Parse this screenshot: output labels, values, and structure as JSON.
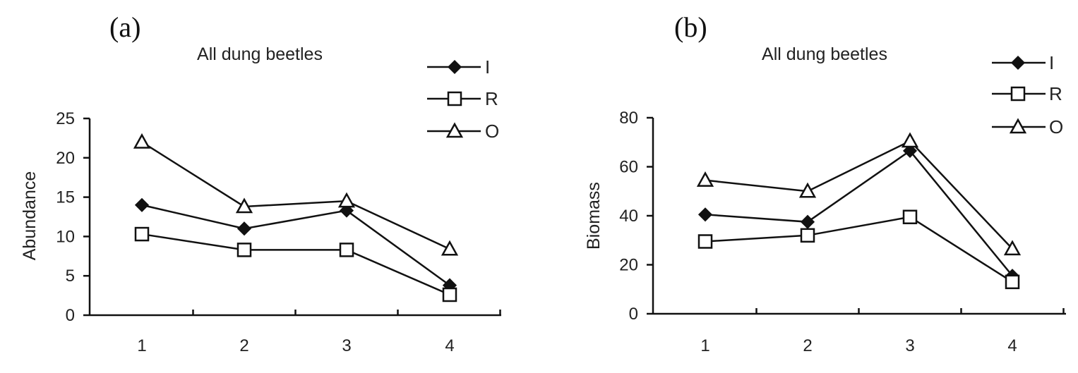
{
  "chart_data": [
    {
      "panel": "(a)",
      "type": "line",
      "title": "All dung beetles",
      "xlabel": "",
      "ylabel": "Abundance",
      "x": [
        "1",
        "2",
        "3",
        "4"
      ],
      "ylim": [
        0,
        25
      ],
      "yticks": [
        "0",
        "5",
        "10",
        "15",
        "20",
        "25"
      ],
      "grid": false,
      "legend": "top-right",
      "series": [
        {
          "name": "I",
          "marker": "filled-diamond",
          "values": [
            14,
            11,
            13.3,
            3.8
          ]
        },
        {
          "name": "R",
          "marker": "open-square",
          "values": [
            10.3,
            8.3,
            8.3,
            2.6
          ]
        },
        {
          "name": "O",
          "marker": "open-triangle",
          "values": [
            22,
            13.8,
            14.5,
            8.4
          ]
        }
      ]
    },
    {
      "panel": "(b)",
      "type": "line",
      "title": "All dung beetles",
      "xlabel": "",
      "ylabel": "Biomass",
      "x": [
        "1",
        "2",
        "3",
        "4"
      ],
      "ylim": [
        0,
        80
      ],
      "yticks": [
        "0",
        "20",
        "40",
        "60",
        "80"
      ],
      "grid": false,
      "legend": "top-right",
      "series": [
        {
          "name": "I",
          "marker": "filled-diamond",
          "values": [
            40.5,
            37.5,
            66.5,
            15.5
          ]
        },
        {
          "name": "R",
          "marker": "open-square",
          "values": [
            29.5,
            32,
            39.5,
            13
          ]
        },
        {
          "name": "O",
          "marker": "open-triangle",
          "values": [
            54.5,
            50,
            70.5,
            26.5
          ]
        }
      ]
    }
  ]
}
